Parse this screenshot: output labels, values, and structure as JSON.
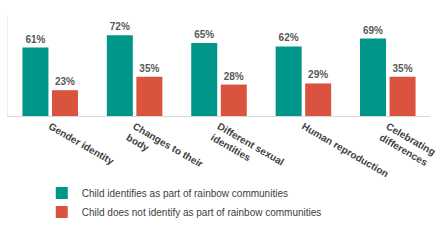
{
  "chart_data": {
    "type": "bar",
    "categories": [
      "Gender identity",
      "Changes to their body",
      "Different sexual identities",
      "Human reproduction",
      "Celebrating differences"
    ],
    "series": [
      {
        "name": "Child identifies as part of rainbow communities",
        "color": "#00968A",
        "values": [
          61,
          72,
          65,
          62,
          69
        ],
        "value_labels": [
          "61%",
          "72%",
          "65%",
          "62%",
          "69%"
        ]
      },
      {
        "name": "Child does not identify as part of rainbow communities",
        "color": "#D9533F",
        "values": [
          23,
          35,
          28,
          29,
          35
        ],
        "value_labels": [
          "23%",
          "35%",
          "28%",
          "29%",
          "35%"
        ]
      }
    ],
    "ylim": [
      0,
      90
    ],
    "grid": false,
    "legend": "bottom",
    "data_labels": true,
    "tick_labels": "x"
  }
}
